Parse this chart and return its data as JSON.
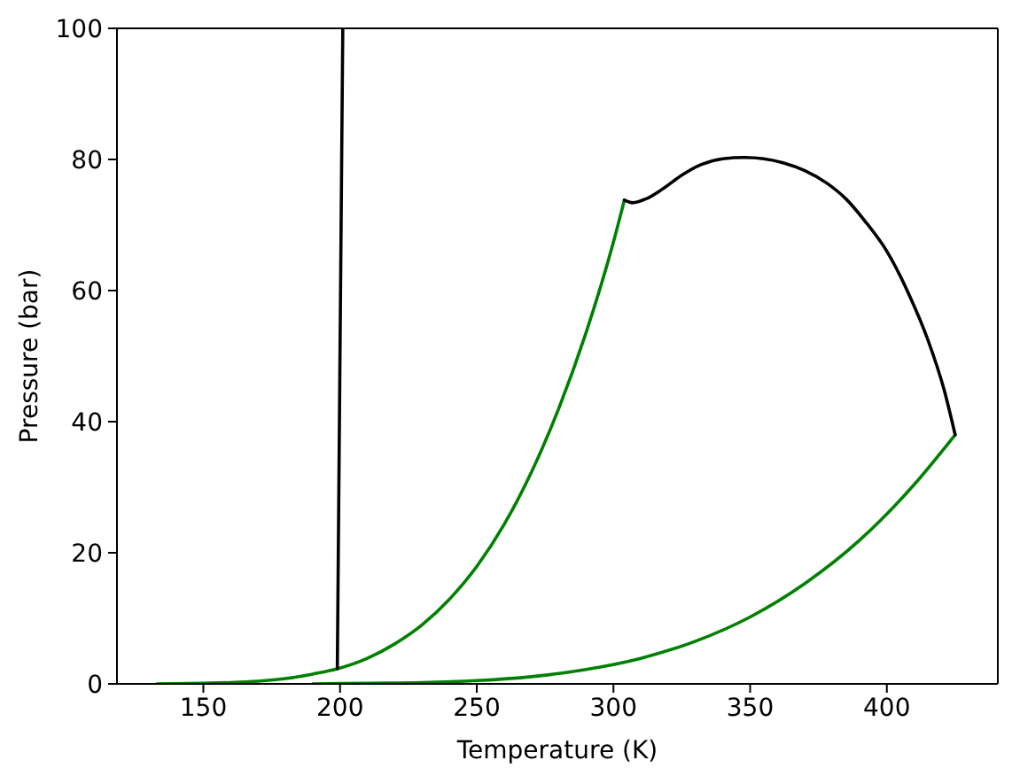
{
  "chart_data": {
    "type": "line",
    "xlabel": "Temperature (K)",
    "ylabel": "Pressure (bar)",
    "xlim": [
      118.4,
      440.6
    ],
    "xticks": [
      150,
      200,
      250,
      300,
      350,
      400
    ],
    "ylim": [
      0,
      100
    ],
    "yticks": [
      0,
      20,
      40,
      60,
      80,
      100
    ],
    "series": [
      {
        "color": "#008000",
        "x": [
          133,
          150,
          160,
          170,
          180,
          190,
          199,
          210,
          220,
          230,
          240,
          250,
          260,
          270,
          280,
          290,
          300,
          304
        ],
        "values": [
          0,
          0.1,
          0.2,
          0.4,
          0.8,
          1.5,
          2.3,
          3.9,
          6.1,
          9.0,
          12.9,
          17.9,
          24.3,
          32.3,
          42.0,
          53.6,
          67.4,
          73.8
        ]
      },
      {
        "color": "#008000",
        "x": [
          190,
          210,
          230,
          250,
          270,
          290,
          310,
          330,
          350,
          370,
          390,
          410,
          425
        ],
        "values": [
          0,
          0.1,
          0.2,
          0.5,
          1.1,
          2.2,
          3.9,
          6.5,
          10.2,
          15.3,
          21.9,
          30.4,
          38.0
        ]
      },
      {
        "color": "#000000",
        "x": [
          304,
          307,
          312,
          318,
          325,
          332,
          340,
          348,
          355,
          362,
          370,
          378,
          385,
          392,
          400,
          408,
          415,
          421,
          425
        ],
        "values": [
          73.8,
          73.4,
          74.0,
          75.5,
          77.6,
          79.2,
          80.1,
          80.3,
          80.1,
          79.5,
          78.3,
          76.4,
          74.0,
          70.6,
          66.0,
          59.5,
          52.5,
          44.8,
          38.0
        ]
      },
      {
        "color": "#000000",
        "x": [
          199,
          201
        ],
        "values": [
          2.3,
          100
        ]
      }
    ]
  }
}
